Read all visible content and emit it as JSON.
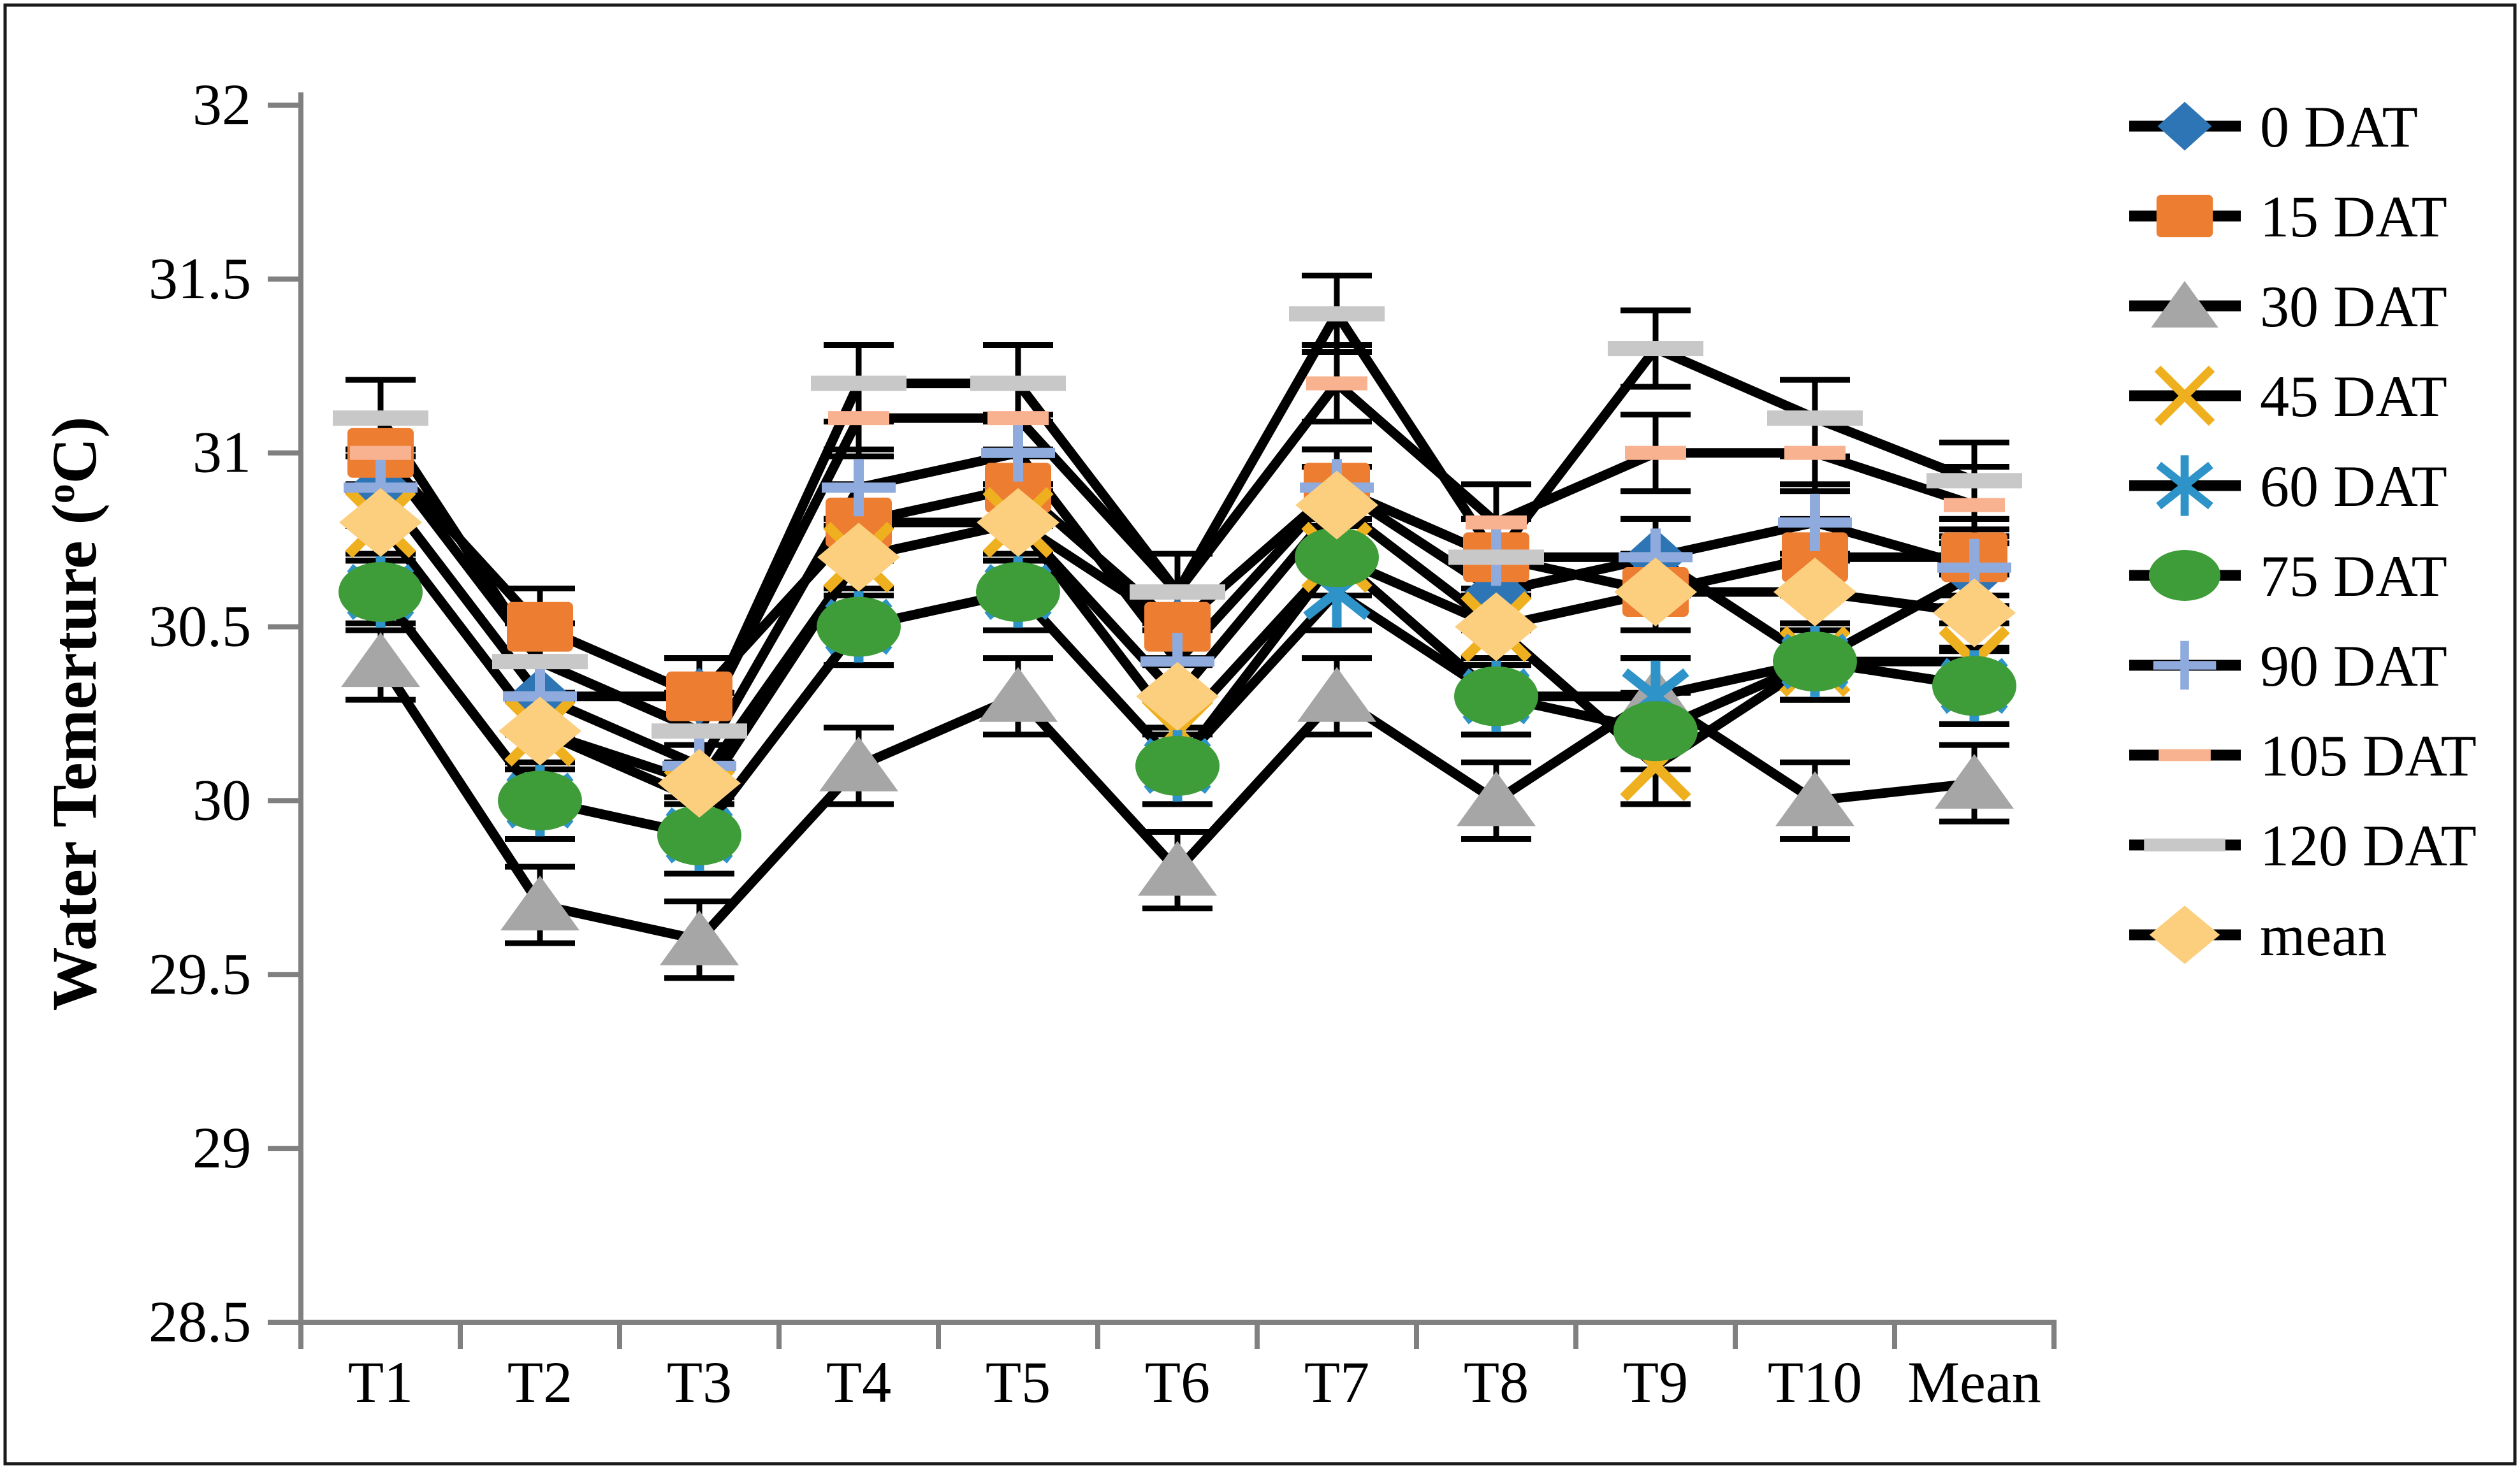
{
  "figure": {
    "background": "#ffffff",
    "border_color": "#1a1a1a",
    "axis_line_color": "#808080",
    "line_color": "#000000",
    "error_bar_color": "#000000"
  },
  "chart_data": {
    "type": "line",
    "title": "",
    "xlabel": "",
    "ylabel": {
      "text": "Water Temerture (",
      "sup": "o",
      "after": "C)"
    },
    "categories": [
      "T1",
      "T2",
      "T3",
      "T4",
      "T5",
      "T6",
      "T7",
      "T8",
      "T9",
      "T10",
      "Mean"
    ],
    "ylim": [
      28.5,
      32
    ],
    "ytick_labels": [
      "28.5",
      "29",
      "29.5",
      "30",
      "30.5",
      "31",
      "31.5",
      "32"
    ],
    "yticks": [
      28.5,
      29,
      29.5,
      30,
      30.5,
      31,
      31.5,
      32
    ],
    "grid": false,
    "legend_position": "right",
    "error_bar": 0.11,
    "series": [
      {
        "name": "0 DAT",
        "marker": "diamond",
        "color": "#2E75B6",
        "values": [
          30.9,
          30.3,
          30.3,
          30.8,
          30.8,
          30.5,
          30.9,
          30.6,
          30.7,
          30.4,
          30.65
        ]
      },
      {
        "name": "15 DAT",
        "marker": "square",
        "color": "#ED7D31",
        "values": [
          31.0,
          30.5,
          30.3,
          30.8,
          30.9,
          30.5,
          30.9,
          30.7,
          30.6,
          30.7,
          30.7
        ]
      },
      {
        "name": "30 DAT",
        "marker": "triangle",
        "color": "#A6A6A6",
        "values": [
          30.4,
          29.7,
          29.6,
          30.1,
          30.3,
          29.8,
          30.3,
          30.0,
          30.3,
          30.0,
          30.05
        ]
      },
      {
        "name": "45 DAT",
        "marker": "xmark",
        "color": "#EFB020",
        "values": [
          30.8,
          30.2,
          30.0,
          30.7,
          30.8,
          30.2,
          30.7,
          30.5,
          30.1,
          30.4,
          30.4
        ]
      },
      {
        "name": "60 DAT",
        "marker": "asterisk",
        "color": "#2E93C9",
        "values": [
          30.6,
          30.0,
          29.9,
          30.5,
          30.6,
          30.1,
          30.6,
          30.3,
          30.3,
          30.4,
          30.33
        ]
      },
      {
        "name": "75 DAT",
        "marker": "circle",
        "color": "#3E9C39",
        "values": [
          30.6,
          30.0,
          29.9,
          30.5,
          30.6,
          30.1,
          30.7,
          30.3,
          30.2,
          30.4,
          30.33
        ]
      },
      {
        "name": "90 DAT",
        "marker": "plus",
        "color": "#8FAADC",
        "values": [
          30.9,
          30.3,
          30.1,
          30.9,
          31.0,
          30.4,
          30.9,
          30.7,
          30.7,
          30.8,
          30.67
        ]
      },
      {
        "name": "105 DAT",
        "marker": "dash-small",
        "color": "#F9B28F",
        "values": [
          31.0,
          30.4,
          30.2,
          31.1,
          31.1,
          30.6,
          31.2,
          30.8,
          31.0,
          31.0,
          30.85
        ]
      },
      {
        "name": "120 DAT",
        "marker": "dash-wide",
        "color": "#C8C8C8",
        "values": [
          31.1,
          30.4,
          30.2,
          31.2,
          31.2,
          30.6,
          31.4,
          30.7,
          31.3,
          31.1,
          30.92
        ]
      },
      {
        "name": "mean",
        "marker": "diamond-large",
        "color": "#FCCF7E",
        "values": [
          30.8,
          30.2,
          30.05,
          30.7,
          30.8,
          30.3,
          30.85,
          30.5,
          30.6,
          30.6,
          30.54
        ]
      }
    ]
  }
}
